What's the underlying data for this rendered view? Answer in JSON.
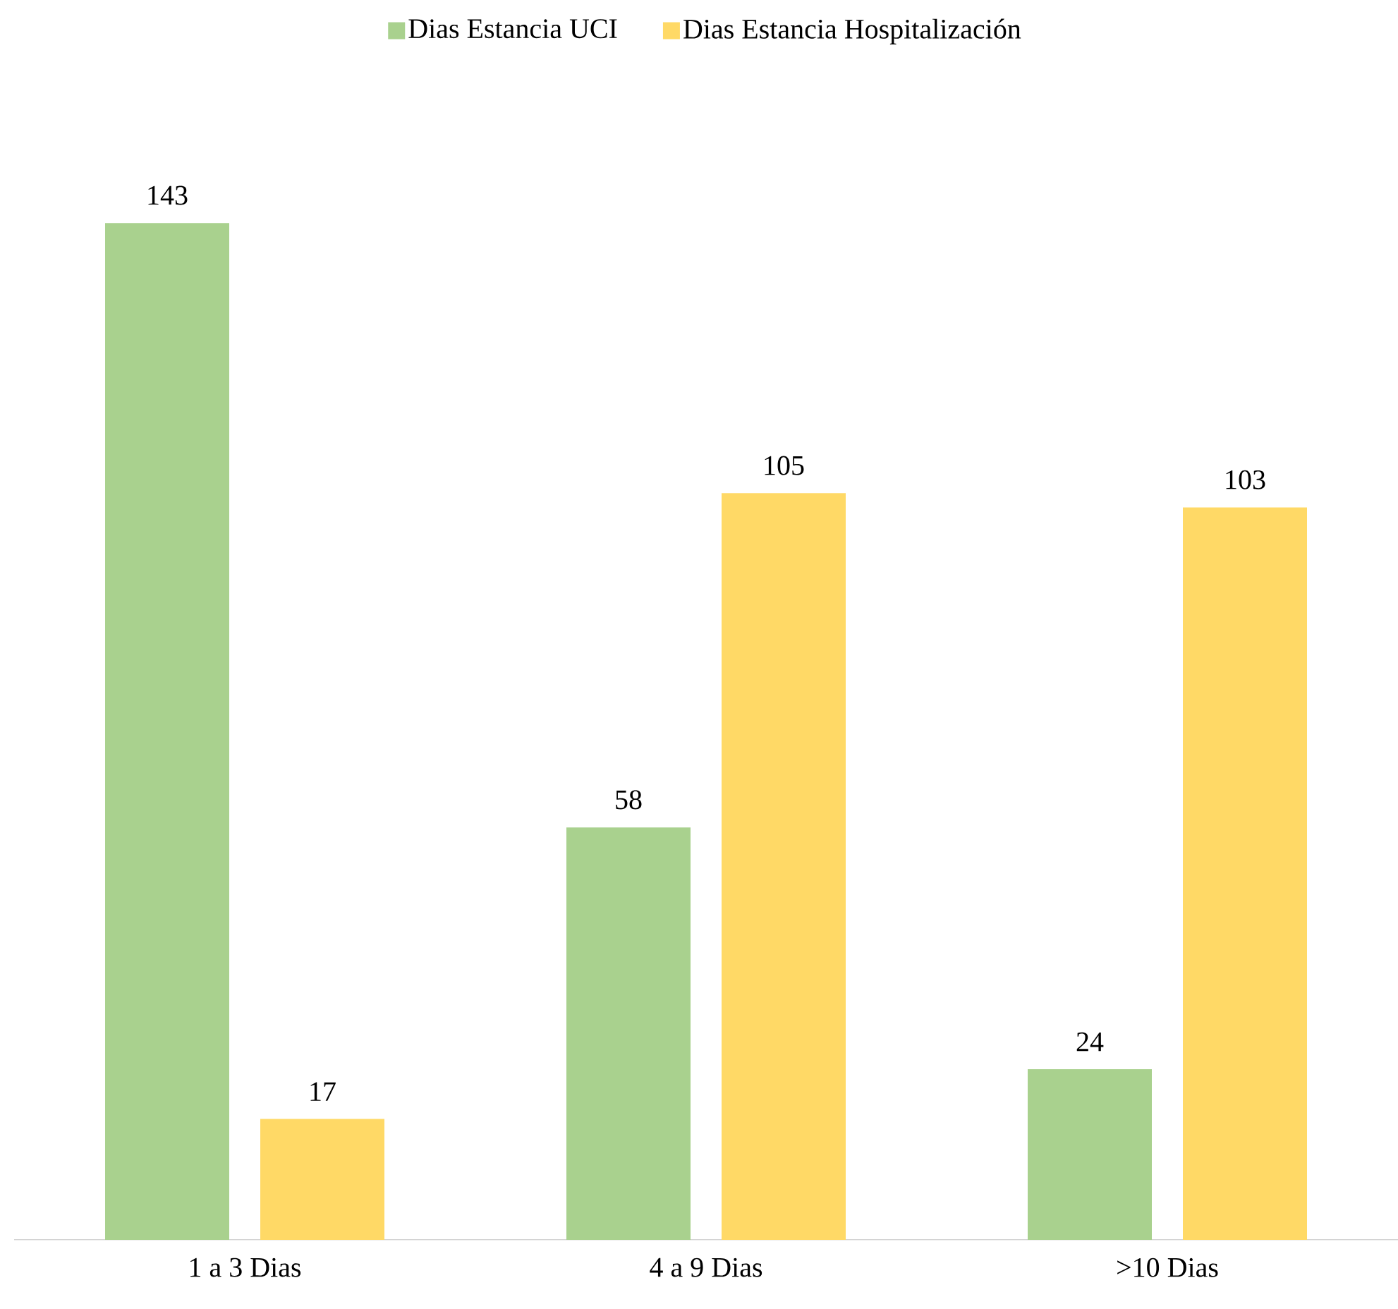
{
  "chart_data": {
    "type": "bar",
    "categories": [
      "1 a 3 Dias",
      "4 a 9 Dias",
      ">10 Dias"
    ],
    "series": [
      {
        "name": "Dias Estancia UCI",
        "color": "#a9d18e",
        "values": [
          143,
          58,
          24
        ]
      },
      {
        "name": "Dias Estancia Hospitalización",
        "color": "#ffd966",
        "values": [
          17,
          105,
          103
        ]
      }
    ],
    "data_labels": true,
    "legend": "top"
  }
}
